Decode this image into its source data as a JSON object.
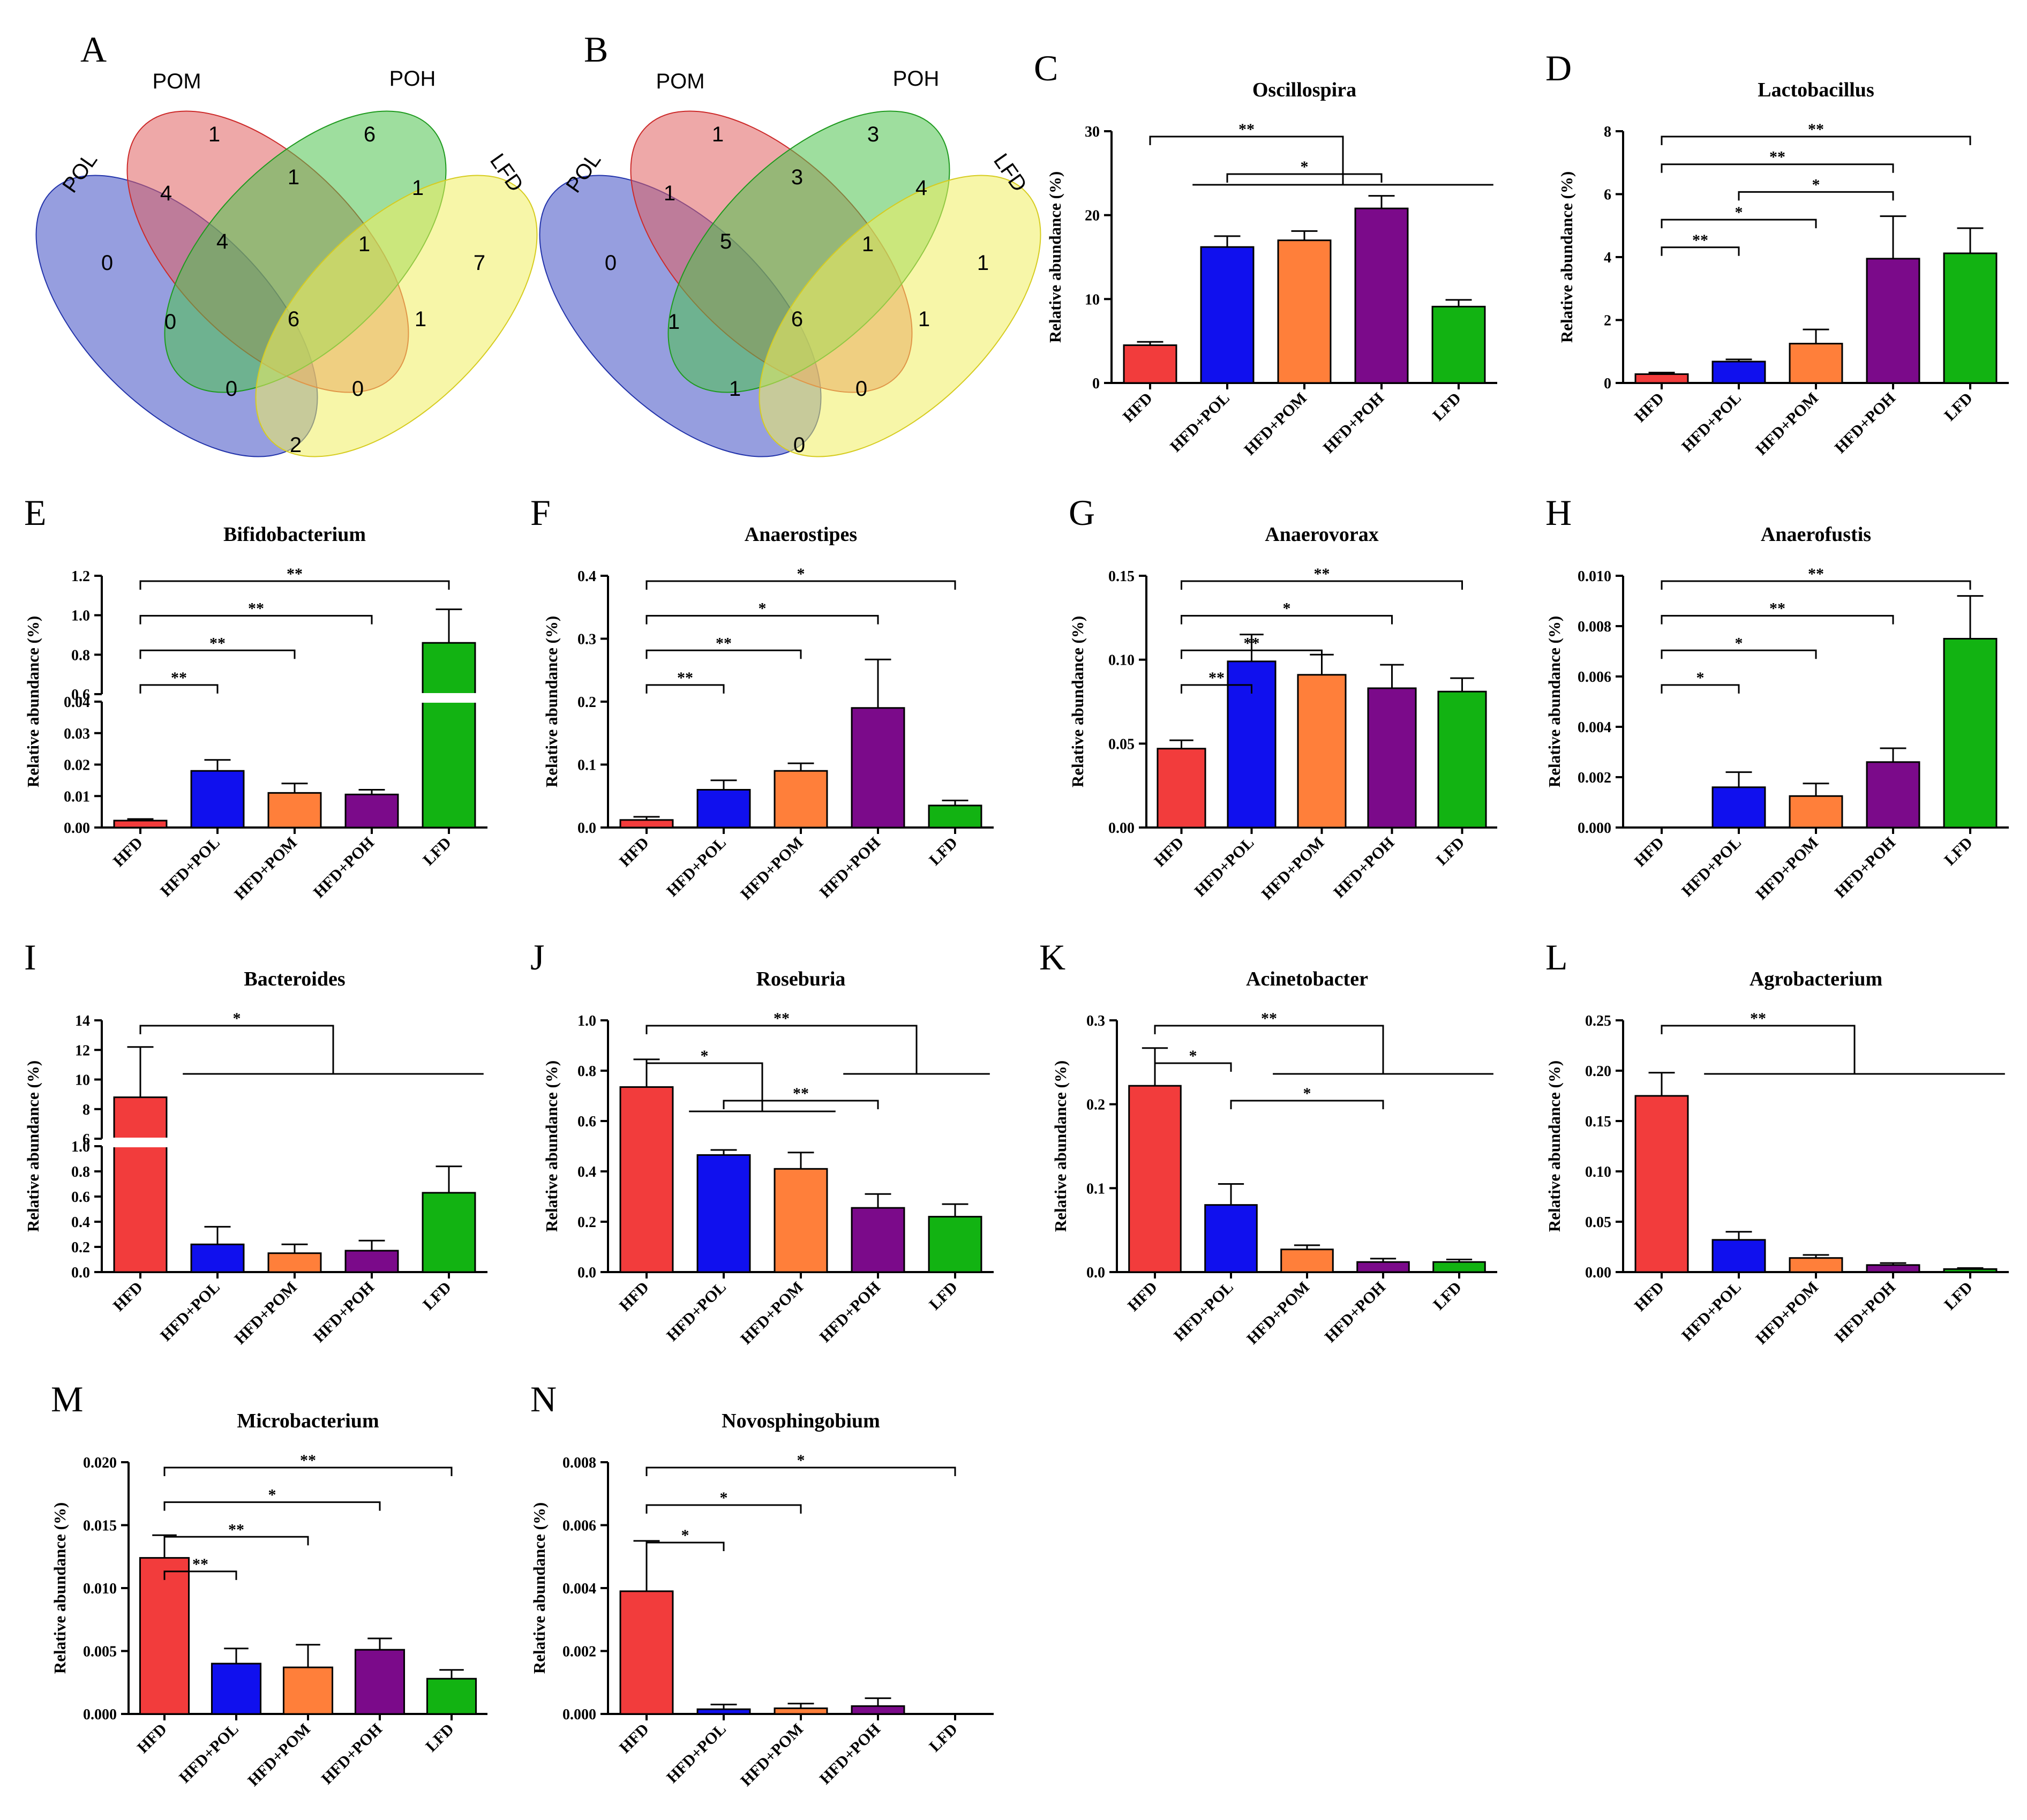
{
  "figure": {
    "group_colors": {
      "HFD": "#f23c3c",
      "HFD+POL": "#1010ee",
      "HFD+POM": "#ff7f3a",
      "HFD+POH": "#7b0a8a",
      "LFD": "#12b312"
    },
    "ylabel": "Relative abundance  (%)"
  },
  "venn": [
    {
      "panel": "A",
      "set_labels": {
        "POL": "POL",
        "POM": "POM",
        "POH": "POH",
        "LFD": "LFD"
      },
      "region_counts": {
        "POL_only": "0",
        "POM_only": "1",
        "POH_only": "6",
        "LFD_only": "7",
        "POL_POM": "4",
        "POM_POH": "1",
        "POH_LFD": "1",
        "POL_POH": "0",
        "POM_LFD": "1",
        "POL_LFD": "2",
        "POL_POM_POH": "4",
        "POM_POH_LFD": "1",
        "POL_POH_LFD": "0",
        "POL_POM_LFD": "0",
        "all": "6"
      }
    },
    {
      "panel": "B",
      "set_labels": {
        "POL": "POL",
        "POM": "POM",
        "POH": "POH",
        "LFD": "LFD"
      },
      "region_counts": {
        "POL_only": "0",
        "POM_only": "1",
        "POH_only": "3",
        "LFD_only": "1",
        "POL_POM": "1",
        "POM_POH": "3",
        "POH_LFD": "4",
        "POL_POH": "1",
        "POM_LFD": "1",
        "POL_LFD": "0",
        "POL_POM_POH": "5",
        "POM_POH_LFD": "1",
        "POL_POH_LFD": "1",
        "POL_POM_LFD": "0",
        "all": "6"
      }
    }
  ],
  "chart_data": [
    {
      "panel": "C",
      "type": "bar",
      "title": "Oscillospira",
      "categories": [
        "HFD",
        "HFD+POL",
        "HFD+POM",
        "HFD+POH",
        "LFD"
      ],
      "values": [
        4.5,
        16.2,
        17.0,
        20.8,
        9.1
      ],
      "errors": [
        0.4,
        1.3,
        1.1,
        1.5,
        0.8
      ],
      "ylim": [
        0,
        30
      ],
      "yticks": [
        "0",
        "10",
        "20",
        "30"
      ],
      "sig": [
        {
          "from": 0,
          "to": [
            1,
            2,
            3,
            4
          ],
          "label": "**"
        },
        {
          "from": 1,
          "to": [
            3
          ],
          "label": "*"
        }
      ]
    },
    {
      "panel": "D",
      "type": "bar",
      "title": "Lactobacillus",
      "categories": [
        "HFD",
        "HFD+POL",
        "HFD+POM",
        "HFD+POH",
        "LFD"
      ],
      "values": [
        0.28,
        0.68,
        1.25,
        3.95,
        4.12
      ],
      "errors": [
        0.05,
        0.07,
        0.45,
        1.35,
        0.8
      ],
      "ylim": [
        0,
        8
      ],
      "yticks": [
        "0",
        "2",
        "4",
        "6",
        "8"
      ],
      "sig": [
        {
          "from": 0,
          "to": [
            4
          ],
          "label": "**"
        },
        {
          "from": 0,
          "to": [
            3
          ],
          "label": "**"
        },
        {
          "from": 1,
          "to": [
            3
          ],
          "label": "*"
        },
        {
          "from": 0,
          "to": [
            2
          ],
          "label": "*"
        },
        {
          "from": 0,
          "to": [
            1
          ],
          "label": "**"
        }
      ]
    },
    {
      "panel": "E",
      "type": "bar",
      "title": "Bifidobacterium",
      "categories": [
        "HFD",
        "HFD+POL",
        "HFD+POM",
        "HFD+POH",
        "LFD"
      ],
      "values": [
        0.0022,
        0.018,
        0.011,
        0.0105,
        0.86
      ],
      "errors": [
        0.0005,
        0.0035,
        0.003,
        0.0015,
        0.17
      ],
      "ylim": [
        0,
        1.2
      ],
      "axis_break": {
        "lower": [
          0,
          0.04
        ],
        "upper": [
          0.6,
          1.2
        ]
      },
      "yticks_lower": [
        "0.00",
        "0.01",
        "0.02",
        "0.03",
        "0.04"
      ],
      "yticks_upper": [
        "0.6",
        "0.8",
        "1.0",
        "1.2"
      ],
      "sig": [
        {
          "from": 0,
          "to": [
            4
          ],
          "label": "**"
        },
        {
          "from": 0,
          "to": [
            3
          ],
          "label": "**"
        },
        {
          "from": 0,
          "to": [
            2
          ],
          "label": "**"
        },
        {
          "from": 0,
          "to": [
            1
          ],
          "label": "**"
        }
      ]
    },
    {
      "panel": "F",
      "type": "bar",
      "title": "Anaerostipes",
      "categories": [
        "HFD",
        "HFD+POL",
        "HFD+POM",
        "HFD+POH",
        "LFD"
      ],
      "values": [
        0.012,
        0.06,
        0.09,
        0.19,
        0.035
      ],
      "errors": [
        0.005,
        0.015,
        0.012,
        0.077,
        0.008
      ],
      "ylim": [
        0,
        0.4
      ],
      "yticks": [
        "0.0",
        "0.1",
        "0.2",
        "0.3",
        "0.4"
      ],
      "sig": [
        {
          "from": 0,
          "to": [
            4
          ],
          "label": "*"
        },
        {
          "from": 0,
          "to": [
            3
          ],
          "label": "*"
        },
        {
          "from": 0,
          "to": [
            2
          ],
          "label": "**"
        },
        {
          "from": 0,
          "to": [
            1
          ],
          "label": "**"
        }
      ]
    },
    {
      "panel": "G",
      "type": "bar",
      "title": "Anaerovorax",
      "categories": [
        "HFD",
        "HFD+POL",
        "HFD+POM",
        "HFD+POH",
        "LFD"
      ],
      "values": [
        0.047,
        0.099,
        0.091,
        0.083,
        0.081
      ],
      "errors": [
        0.005,
        0.016,
        0.012,
        0.014,
        0.008
      ],
      "ylim": [
        0,
        0.15
      ],
      "yticks": [
        "0.00",
        "0.05",
        "0.10",
        "0.15"
      ],
      "sig": [
        {
          "from": 0,
          "to": [
            4
          ],
          "label": "**"
        },
        {
          "from": 0,
          "to": [
            3
          ],
          "label": "*"
        },
        {
          "from": 0,
          "to": [
            2
          ],
          "label": "**"
        },
        {
          "from": 0,
          "to": [
            1
          ],
          "label": "**"
        }
      ]
    },
    {
      "panel": "H",
      "type": "bar",
      "title": "Anaerofustis",
      "categories": [
        "HFD",
        "HFD+POL",
        "HFD+POM",
        "HFD+POH",
        "LFD"
      ],
      "values": [
        0.0,
        0.0016,
        0.00125,
        0.0026,
        0.0075
      ],
      "errors": [
        0,
        0.0006,
        0.0005,
        0.00055,
        0.0017
      ],
      "ylim": [
        0,
        0.01
      ],
      "yticks": [
        "0.000",
        "0.002",
        "0.004",
        "0.006",
        "0.008",
        "0.010"
      ],
      "sig": [
        {
          "from": 0,
          "to": [
            4
          ],
          "label": "**"
        },
        {
          "from": 0,
          "to": [
            3
          ],
          "label": "**"
        },
        {
          "from": 0,
          "to": [
            2
          ],
          "label": "*"
        },
        {
          "from": 0,
          "to": [
            1
          ],
          "label": "*"
        }
      ]
    },
    {
      "panel": "I",
      "type": "bar",
      "title": "Bacteroides",
      "categories": [
        "HFD",
        "HFD+POL",
        "HFD+POM",
        "HFD+POH",
        "LFD"
      ],
      "values": [
        8.8,
        0.22,
        0.15,
        0.17,
        0.63
      ],
      "errors": [
        3.4,
        0.14,
        0.07,
        0.08,
        0.21
      ],
      "ylim": [
        0,
        14
      ],
      "axis_break": {
        "lower": [
          0,
          1.0
        ],
        "upper": [
          6,
          14
        ]
      },
      "yticks_lower": [
        "0.0",
        "0.2",
        "0.4",
        "0.6",
        "0.8",
        "1.0"
      ],
      "yticks_upper": [
        "6",
        "8",
        "10",
        "12",
        "14"
      ],
      "sig": [
        {
          "from": 0,
          "to": [
            1,
            2,
            3,
            4
          ],
          "label": "*"
        }
      ]
    },
    {
      "panel": "J",
      "type": "bar",
      "title": "Roseburia",
      "categories": [
        "HFD",
        "HFD+POL",
        "HFD+POM",
        "HFD+POH",
        "LFD"
      ],
      "values": [
        0.735,
        0.465,
        0.41,
        0.255,
        0.22
      ],
      "errors": [
        0.11,
        0.02,
        0.065,
        0.055,
        0.05
      ],
      "ylim": [
        0,
        1.0
      ],
      "yticks": [
        "0.0",
        "0.2",
        "0.4",
        "0.6",
        "0.8",
        "1.0"
      ],
      "sig": [
        {
          "from": 0,
          "to": [
            3,
            4
          ],
          "label": "**"
        },
        {
          "from": 0,
          "to": [
            1,
            2
          ],
          "label": "*"
        },
        {
          "from": 1,
          "to": [
            3
          ],
          "label": "**"
        }
      ]
    },
    {
      "panel": "K",
      "type": "bar",
      "title": "Acinetobacter",
      "categories": [
        "HFD",
        "HFD+POL",
        "HFD+POM",
        "HFD+POH",
        "LFD"
      ],
      "values": [
        0.222,
        0.08,
        0.027,
        0.012,
        0.012
      ],
      "errors": [
        0.045,
        0.025,
        0.005,
        0.004,
        0.003
      ],
      "ylim": [
        0,
        0.3
      ],
      "yticks": [
        "0.0",
        "0.1",
        "0.2",
        "0.3"
      ],
      "sig": [
        {
          "from": 0,
          "to": [
            2,
            3,
            4
          ],
          "label": "**"
        },
        {
          "from": 0,
          "to": [
            1
          ],
          "label": "*"
        },
        {
          "from": 1,
          "to": [
            3
          ],
          "label": "*"
        }
      ]
    },
    {
      "panel": "L",
      "type": "bar",
      "title": "Agrobacterium",
      "categories": [
        "HFD",
        "HFD+POL",
        "HFD+POM",
        "HFD+POH",
        "LFD"
      ],
      "values": [
        0.175,
        0.032,
        0.014,
        0.007,
        0.003
      ],
      "errors": [
        0.023,
        0.008,
        0.003,
        0.002,
        0.001
      ],
      "ylim": [
        0,
        0.25
      ],
      "yticks": [
        "0.00",
        "0.05",
        "0.10",
        "0.15",
        "0.20",
        "0.25"
      ],
      "sig": [
        {
          "from": 0,
          "to": [
            1,
            2,
            3,
            4
          ],
          "label": "**"
        }
      ]
    },
    {
      "panel": "M",
      "type": "bar",
      "title": "Microbacterium",
      "categories": [
        "HFD",
        "HFD+POL",
        "HFD+POM",
        "HFD+POH",
        "LFD"
      ],
      "values": [
        0.0124,
        0.004,
        0.0037,
        0.0051,
        0.0028
      ],
      "errors": [
        0.0018,
        0.0012,
        0.0018,
        0.0009,
        0.0007
      ],
      "ylim": [
        0,
        0.02
      ],
      "yticks": [
        "0.000",
        "0.005",
        "0.010",
        "0.015",
        "0.020"
      ],
      "sig": [
        {
          "from": 0,
          "to": [
            4
          ],
          "label": "**"
        },
        {
          "from": 0,
          "to": [
            3
          ],
          "label": "*"
        },
        {
          "from": 0,
          "to": [
            2
          ],
          "label": "**"
        },
        {
          "from": 0,
          "to": [
            1
          ],
          "label": "**"
        }
      ]
    },
    {
      "panel": "N",
      "type": "bar",
      "title": "Novosphingobium",
      "categories": [
        "HFD",
        "HFD+POL",
        "HFD+POM",
        "HFD+POH",
        "LFD"
      ],
      "values": [
        0.0039,
        0.00015,
        0.00018,
        0.00025,
        0.0
      ],
      "errors": [
        0.0016,
        0.00015,
        0.00015,
        0.00025,
        0
      ],
      "ylim": [
        0,
        0.008
      ],
      "yticks": [
        "0.000",
        "0.002",
        "0.004",
        "0.006",
        "0.008"
      ],
      "sig": [
        {
          "from": 0,
          "to": [
            4
          ],
          "label": "*"
        },
        {
          "from": 0,
          "to": [
            2
          ],
          "label": "*"
        },
        {
          "from": 0,
          "to": [
            1
          ],
          "label": "*"
        }
      ]
    }
  ]
}
